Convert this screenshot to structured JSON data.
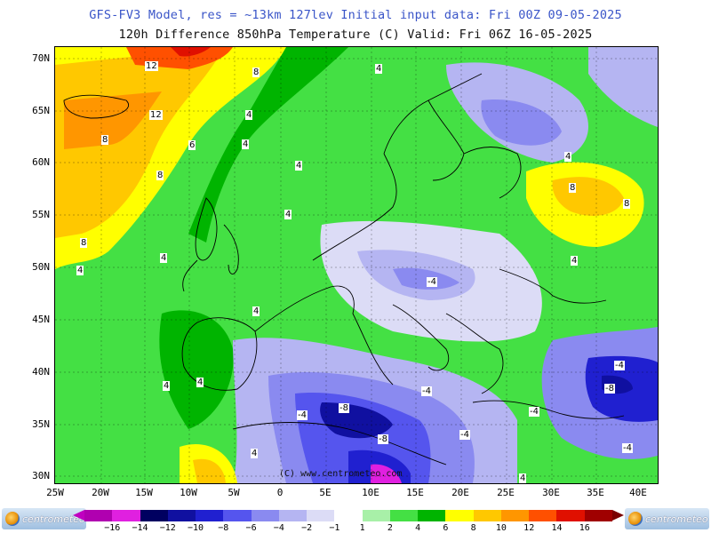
{
  "header": {
    "title_line1": "GFS-FV3 Model, res = ~13km 127lev   Initial input data: Fri 00Z 09-05-2025",
    "title_line2": "120h Difference 850hPa Temperature (C)  Valid: Fri 06Z 16-05-2025"
  },
  "axes": {
    "lat_labels": [
      "70N",
      "65N",
      "60N",
      "55N",
      "50N",
      "45N",
      "40N",
      "35N",
      "30N"
    ],
    "lon_labels": [
      "25W",
      "20W",
      "15W",
      "10W",
      "5W",
      "0",
      "5E",
      "10E",
      "15E",
      "20E",
      "25E",
      "30E",
      "35E",
      "40E"
    ]
  },
  "copyright": "(C) www.centrometeo.com",
  "contour_labels": [
    {
      "text": "12"
    },
    {
      "text": "8"
    },
    {
      "text": "4"
    },
    {
      "text": "12"
    },
    {
      "text": "8"
    },
    {
      "text": "6"
    },
    {
      "text": "4"
    },
    {
      "text": "8"
    },
    {
      "text": "4"
    },
    {
      "text": "8"
    },
    {
      "text": "4"
    },
    {
      "text": "4"
    },
    {
      "text": "4"
    },
    {
      "text": "8"
    },
    {
      "text": "8"
    },
    {
      "text": "4"
    },
    {
      "text": "-4"
    },
    {
      "text": "4"
    },
    {
      "text": "4"
    },
    {
      "text": "4"
    },
    {
      "text": "-4"
    },
    {
      "text": "-8"
    },
    {
      "text": "-4"
    },
    {
      "text": "-8"
    },
    {
      "text": "-4"
    },
    {
      "text": "-8"
    },
    {
      "text": "-4"
    },
    {
      "text": "-4"
    },
    {
      "text": "4"
    },
    {
      "text": "4"
    },
    {
      "text": "-4"
    },
    {
      "text": "4"
    },
    {
      "text": "4"
    }
  ],
  "colorbar": {
    "colors": [
      "#b000b0",
      "#e020e0",
      "#000060",
      "#1010a0",
      "#2020d0",
      "#5555ee",
      "#8a8af0",
      "#b5b5f2",
      "#dcdcf6",
      "#ffffff",
      "#a8f0a8",
      "#44e044",
      "#00b400",
      "#ffff00",
      "#ffc800",
      "#ff9600",
      "#ff5000",
      "#e01000",
      "#a00000"
    ],
    "labels": [
      "−16",
      "−14",
      "−12",
      "−10",
      "−8",
      "−6",
      "−4",
      "−2",
      "−1",
      "1",
      "2",
      "4",
      "6",
      "8",
      "10",
      "12",
      "14",
      "16"
    ]
  },
  "logos": {
    "left": "centrometeo",
    "right": "centrometeo"
  }
}
